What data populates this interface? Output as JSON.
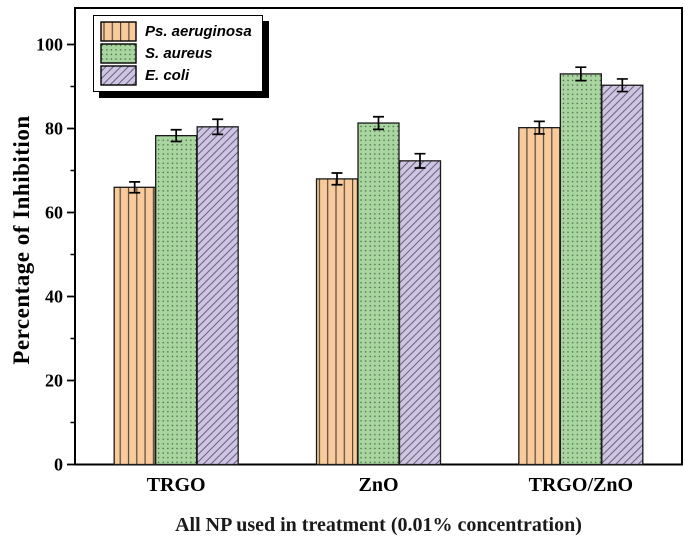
{
  "figure": {
    "background": "#ffffff",
    "frame_color": "#000000"
  },
  "chart_data": {
    "type": "bar",
    "title": "",
    "xlabel": "All NP used in treatment (0.01% concentration)",
    "ylabel": "Percentage of Inhibition",
    "categories": [
      "TRGO",
      "ZnO",
      "TRGO/ZnO"
    ],
    "series": [
      {
        "name": "Ps. aeruginosa",
        "values": [
          66,
          68,
          80.2
        ],
        "errors": [
          1.3,
          1.4,
          1.5
        ],
        "fill": "#F8CA9C",
        "pattern": "vertical-lines",
        "pattern_color": "#55483a"
      },
      {
        "name": "S. aureus",
        "values": [
          78.3,
          81.3,
          93
        ],
        "errors": [
          1.4,
          1.5,
          1.6
        ],
        "fill": "#A9D6A0",
        "pattern": "dots",
        "pattern_color": "#44613f"
      },
      {
        "name": "E. coli",
        "values": [
          80.4,
          72.3,
          90.3
        ],
        "errors": [
          1.8,
          1.7,
          1.5
        ],
        "fill": "#CDC5E1",
        "pattern": "diagonal-lines",
        "pattern_color": "#6f6781"
      }
    ],
    "ylim": [
      0,
      100
    ],
    "yticks": [
      0,
      20,
      40,
      60,
      80,
      100
    ],
    "minor_yticks": [
      10,
      30,
      50,
      70,
      90
    ],
    "grid": false,
    "legend_position": "top-left",
    "bar_edge_color": "#1a1a1a",
    "error_bar_color": "#000000"
  }
}
